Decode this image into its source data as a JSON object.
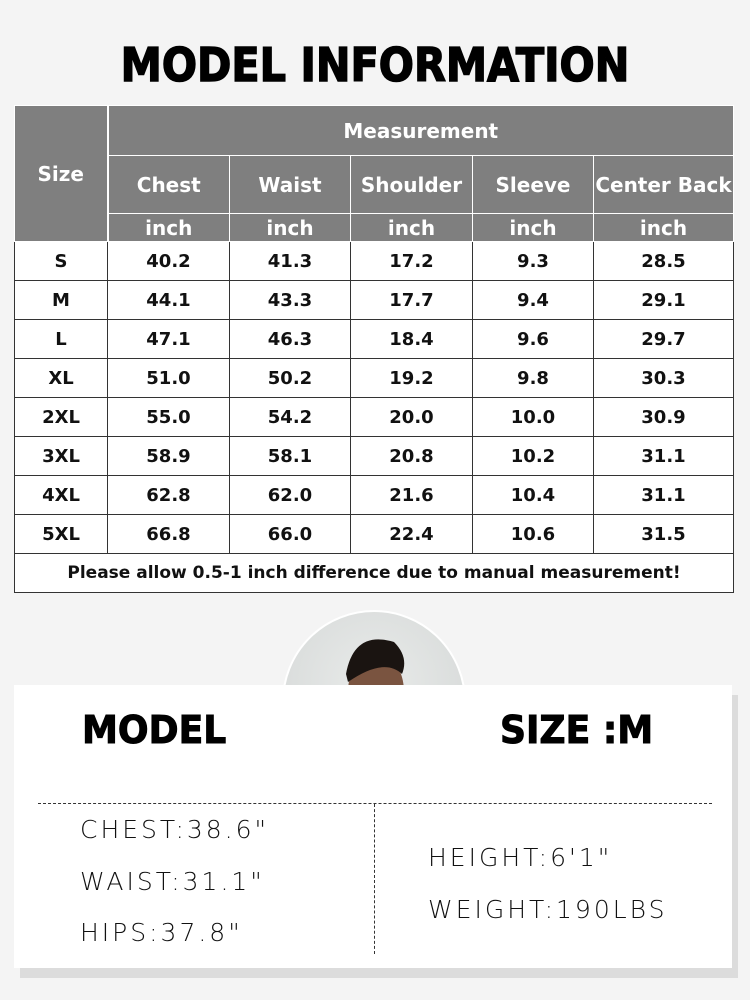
{
  "title": "MODEL INFORMATION",
  "table": {
    "size_header": "Size",
    "group_header": "Measurement",
    "columns": [
      "Chest",
      "Waist",
      "Shoulder",
      "Sleeve",
      "Center Back"
    ],
    "unit": "inch",
    "rows": [
      [
        "S",
        "40.2",
        "41.3",
        "17.2",
        "9.3",
        "28.5"
      ],
      [
        "M",
        "44.1",
        "43.3",
        "17.7",
        "9.4",
        "29.1"
      ],
      [
        "L",
        "47.1",
        "46.3",
        "18.4",
        "9.6",
        "29.7"
      ],
      [
        "XL",
        "51.0",
        "50.2",
        "19.2",
        "9.8",
        "30.3"
      ],
      [
        "2XL",
        "55.0",
        "54.2",
        "20.0",
        "10.0",
        "30.9"
      ],
      [
        "3XL",
        "58.9",
        "58.1",
        "20.8",
        "10.2",
        "31.1"
      ],
      [
        "4XL",
        "62.8",
        "62.0",
        "21.6",
        "10.4",
        "31.1"
      ],
      [
        "5XL",
        "66.8",
        "66.0",
        "22.4",
        "10.6",
        "31.5"
      ]
    ],
    "note": "Please allow 0.5-1 inch difference due to manual measurement!"
  },
  "model": {
    "label": "MODEL",
    "size_label": "SIZE :M",
    "chest": "CHEST:38.6\"",
    "waist": "WAIST:31.1\"",
    "hips": "HIPS:37.8\"",
    "height": "HEIGHT:6'1\"",
    "weight": "WEIGHT:190LBS"
  }
}
